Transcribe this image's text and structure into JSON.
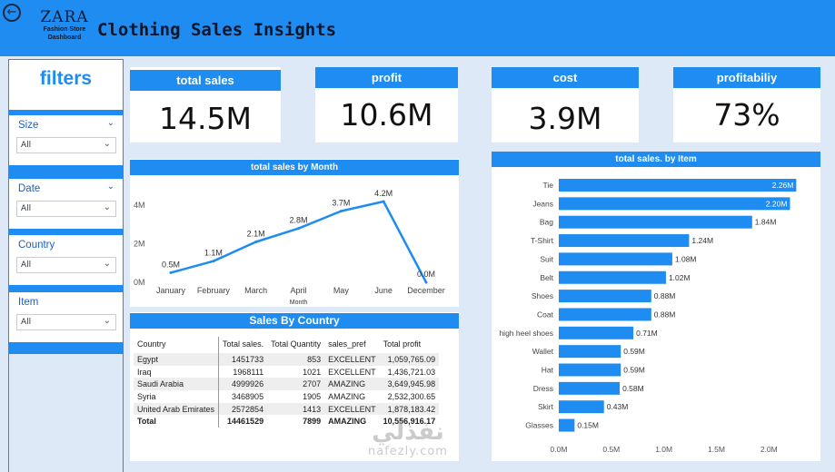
{
  "header": {
    "title": "Clothing Sales Insights",
    "logo_brand": "ZARA",
    "logo_sub_1": "Fashion Store",
    "logo_sub_2": "Dashboard",
    "back_icon": "back-arrow-icon"
  },
  "filters": {
    "title": "filters",
    "items": [
      {
        "label": "Size",
        "value": "All"
      },
      {
        "label": "Date",
        "value": "All"
      },
      {
        "label": "Country",
        "value": "All"
      },
      {
        "label": "Item",
        "value": "All"
      }
    ]
  },
  "kpis": [
    {
      "label": "total sales",
      "value": "14.5M"
    },
    {
      "label": "profit",
      "value": "10.6M"
    },
    {
      "label": "cost",
      "value": "3.9M"
    },
    {
      "label": "profitabiliy",
      "value": "73%"
    }
  ],
  "colors": {
    "accent": "#1e8cf0",
    "background": "#dde9f7"
  },
  "chart_data": [
    {
      "type": "line",
      "title": "total sales by Month",
      "xlabel": "Month",
      "ylabel": "",
      "categories": [
        "January",
        "February",
        "March",
        "April",
        "May",
        "June",
        "December"
      ],
      "values": [
        0.5,
        1.1,
        2.1,
        2.8,
        3.7,
        4.2,
        0.0
      ],
      "data_labels": [
        "0.5M",
        "1.1M",
        "2.1M",
        "2.8M",
        "3.7M",
        "4.2M",
        "0.0M"
      ],
      "yticks": [
        "0M",
        "2M",
        "4M"
      ],
      "ylim": [
        0,
        4.2
      ],
      "grid": false,
      "color": "#1e8cf0"
    },
    {
      "type": "bar",
      "orientation": "horizontal",
      "title": "total sales. by Item",
      "categories": [
        "Tie",
        "Jeans",
        "Bag",
        "T-Shirt",
        "Suit",
        "Belt",
        "Shoes",
        "Coat",
        "high heel shoes",
        "Wallet",
        "Hat",
        "Dress",
        "Skirt",
        "Glasses"
      ],
      "values": [
        2.26,
        2.2,
        1.84,
        1.24,
        1.08,
        1.02,
        0.88,
        0.88,
        0.71,
        0.59,
        0.59,
        0.58,
        0.43,
        0.15
      ],
      "data_labels": [
        "2.26M",
        "2.20M",
        "1.84M",
        "1.24M",
        "1.08M",
        "1.02M",
        "0.88M",
        "0.88M",
        "0.71M",
        "0.59M",
        "0.59M",
        "0.58M",
        "0.43M",
        "0.15M"
      ],
      "xticks": [
        "0.0M",
        "0.5M",
        "1.0M",
        "1.5M",
        "2.0M"
      ],
      "xlim": [
        0,
        2.3
      ],
      "grid": false,
      "color": "#1e8cf0"
    }
  ],
  "country_table": {
    "title": "Sales By Country",
    "columns": [
      "Country",
      "Total sales.",
      "Total Quantity",
      "sales_pref",
      "Total profit"
    ],
    "rows": [
      [
        "Egypt",
        "1451733",
        "853",
        "EXCELLENT",
        "1,059,765.09"
      ],
      [
        "Iraq",
        "1968111",
        "1021",
        "EXCELLENT",
        "1,436,721.03"
      ],
      [
        "Saudi Arabia",
        "4999926",
        "2707",
        "AMAZING",
        "3,649,945.98"
      ],
      [
        "Syria",
        "3468905",
        "1905",
        "AMAZING",
        "2,532,300.65"
      ],
      [
        "United Arab Emirates",
        "2572854",
        "1413",
        "EXCELLENT",
        "1,878,183.42"
      ]
    ],
    "total": [
      "Total",
      "14461529",
      "7899",
      "AMAZING",
      "10,556,916.17"
    ]
  },
  "watermark": {
    "arabic": "نفذلي",
    "latin": "nafezly.com"
  }
}
